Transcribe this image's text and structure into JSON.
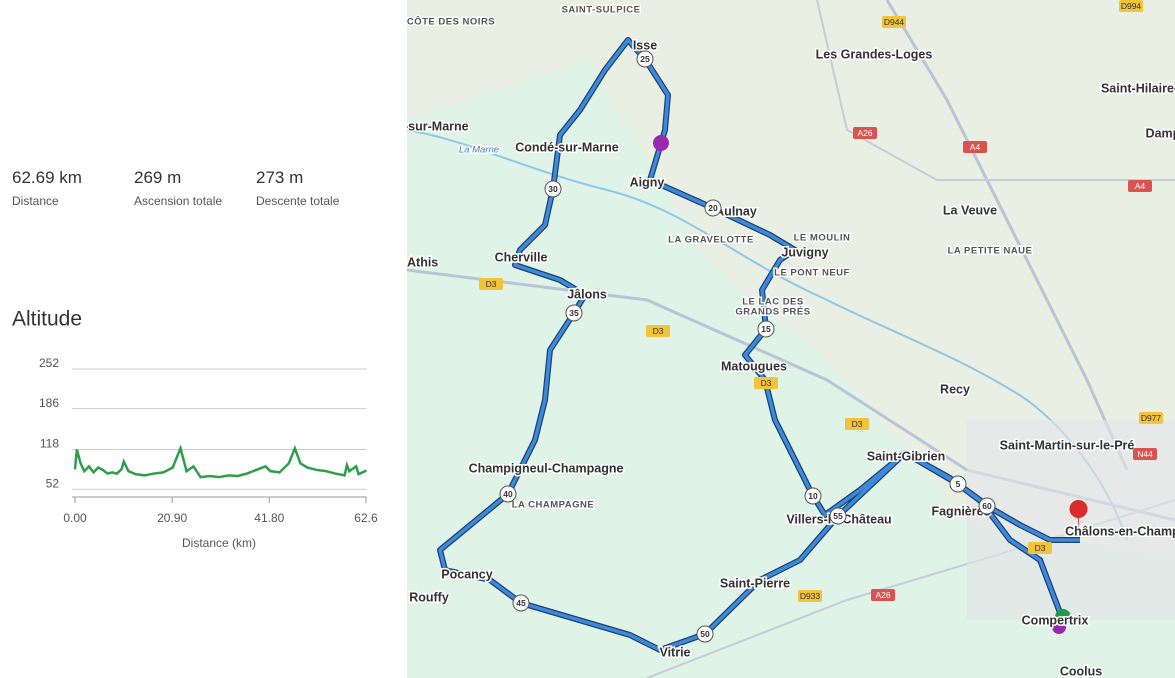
{
  "stats": [
    {
      "value": "62.69 km",
      "label": "Distance"
    },
    {
      "value": "269 m",
      "label": "Ascension totale"
    },
    {
      "value": "273 m",
      "label": "Descente totale"
    }
  ],
  "chart_data": {
    "type": "line",
    "title": "Altitude",
    "x_label": "Distance (km)",
    "x": [
      0,
      0.4,
      1.2,
      2,
      3,
      4,
      5,
      6,
      7,
      8,
      9,
      10,
      10.5,
      11.5,
      13,
      15,
      17,
      19,
      21,
      22.7,
      24,
      25.5,
      27,
      29,
      31,
      33,
      35,
      37,
      39,
      41,
      42,
      44,
      46,
      47.3,
      48.5,
      50,
      52,
      54,
      56,
      58,
      58.5,
      59,
      60.5,
      61,
      62.69
    ],
    "values": [
      85,
      118,
      95,
      82,
      90,
      80,
      88,
      84,
      78,
      80,
      78,
      85,
      98,
      82,
      77,
      75,
      78,
      80,
      88,
      120,
      82,
      90,
      72,
      74,
      72,
      75,
      74,
      78,
      84,
      90,
      82,
      80,
      95,
      120,
      95,
      88,
      84,
      82,
      78,
      75,
      92,
      82,
      90,
      77,
      83
    ],
    "color": "#2e9e4a",
    "xlim": [
      0,
      62.69
    ],
    "ylim": [
      39,
      252
    ],
    "yticks": [
      52,
      118,
      186,
      252
    ],
    "xticks": [
      {
        "value": 0,
        "label": "0.00"
      },
      {
        "value": 20.9,
        "label": "20.90"
      },
      {
        "value": 41.8,
        "label": "41.80"
      },
      62.6
    ],
    "grid": true
  },
  "map": {
    "places": [
      "SAINT-SULPICE",
      "CÔTE DES NOIRS",
      "Les Grandes-Loges",
      "Saint-Hilaire-a",
      "Dampierr",
      "-sur-Marne",
      "Condé-sur-Marne",
      "La Marne",
      "Aigny",
      "La Veuve",
      "LA GRAVELOTTE",
      "LE MOULIN",
      "Juvigny",
      "LA PETITE NAUE",
      "Athis",
      "Cherville",
      "LE PONT NEUF",
      "Jâlons",
      "LE LAC DES",
      "GRANDS PRÉS",
      "Matougues",
      "Recy",
      "Saint-Martin-sur-le-Pré",
      "Saint-Gibrien",
      "Champigneul-Champagne",
      "LA CHAMPAGNE",
      "Fagnières",
      "Châlons-en-Champagne",
      "Villers-le-Château",
      "Saint-Pierre",
      "Pocancy",
      "Rouffy",
      "Compertrix",
      "Vitrie",
      "Coolus",
      "Isse",
      "Aulnay"
    ],
    "roads": [
      "D944",
      "D994",
      "A26",
      "A4",
      "A4",
      "D3",
      "D3",
      "D3",
      "D3",
      "D977",
      "N44",
      "D933",
      "A26",
      "D3"
    ],
    "km_markers": [
      "5",
      "10",
      "15",
      "20",
      "25",
      "30",
      "35",
      "40",
      "45",
      "50",
      "55",
      "60"
    ]
  }
}
